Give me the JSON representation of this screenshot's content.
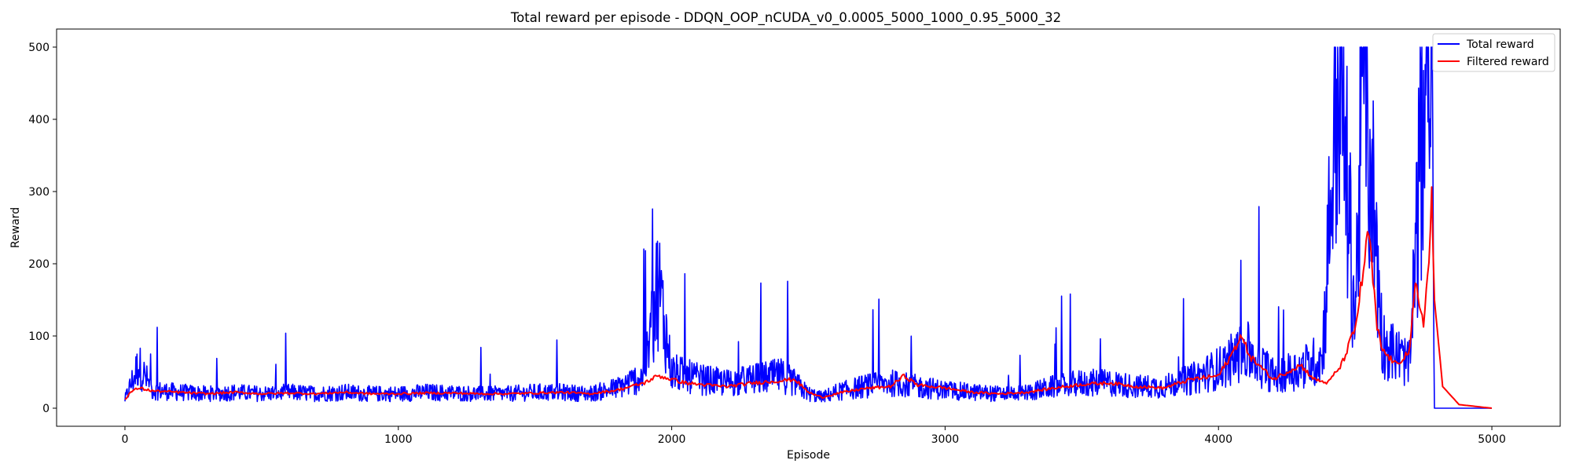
{
  "chart_data": {
    "type": "line",
    "title": "Total reward per episode - DDQN_OOP_nCUDA_v0_0.0005_5000_1000_0.95_5000_32",
    "xlabel": "Episode",
    "ylabel": "Reward",
    "xlim": [
      -250,
      5250
    ],
    "ylim": [
      -25,
      525
    ],
    "xticks": [
      0,
      1000,
      2000,
      3000,
      4000,
      5000
    ],
    "yticks": [
      0,
      100,
      200,
      300,
      400,
      500
    ],
    "grid": false,
    "legend_position": "top-right",
    "series": [
      {
        "name": "Total reward",
        "color": "#0000ff",
        "description_points": [
          [
            0,
            12
          ],
          [
            50,
            60
          ],
          [
            100,
            25
          ],
          [
            200,
            22
          ],
          [
            300,
            20
          ],
          [
            400,
            22
          ],
          [
            500,
            20
          ],
          [
            600,
            22
          ],
          [
            700,
            20
          ],
          [
            800,
            22
          ],
          [
            900,
            20
          ],
          [
            1000,
            20
          ],
          [
            1100,
            22
          ],
          [
            1200,
            21
          ],
          [
            1300,
            20
          ],
          [
            1400,
            20
          ],
          [
            1500,
            22
          ],
          [
            1600,
            22
          ],
          [
            1700,
            20
          ],
          [
            1800,
            28
          ],
          [
            1900,
            45
          ],
          [
            1950,
            175
          ],
          [
            2000,
            50
          ],
          [
            2100,
            40
          ],
          [
            2200,
            35
          ],
          [
            2300,
            40
          ],
          [
            2400,
            45
          ],
          [
            2450,
            35
          ],
          [
            2500,
            20
          ],
          [
            2550,
            15
          ],
          [
            2600,
            22
          ],
          [
            2700,
            30
          ],
          [
            2800,
            35
          ],
          [
            2900,
            30
          ],
          [
            3000,
            25
          ],
          [
            3100,
            22
          ],
          [
            3200,
            20
          ],
          [
            3300,
            22
          ],
          [
            3400,
            30
          ],
          [
            3500,
            35
          ],
          [
            3600,
            35
          ],
          [
            3700,
            30
          ],
          [
            3800,
            30
          ],
          [
            3900,
            40
          ],
          [
            4000,
            55
          ],
          [
            4100,
            80
          ],
          [
            4200,
            45
          ],
          [
            4300,
            55
          ],
          [
            4380,
            70
          ],
          [
            4440,
            500
          ],
          [
            4500,
            120
          ],
          [
            4530,
            500
          ],
          [
            4600,
            90
          ],
          [
            4700,
            60
          ],
          [
            4760,
            500
          ],
          [
            4780,
            500
          ],
          [
            4790,
            0
          ],
          [
            5000,
            0
          ]
        ]
      },
      {
        "name": "Filtered reward",
        "color": "#ff0000",
        "description_points": [
          [
            0,
            12
          ],
          [
            20,
            22
          ],
          [
            50,
            28
          ],
          [
            100,
            24
          ],
          [
            200,
            22
          ],
          [
            300,
            20
          ],
          [
            400,
            22
          ],
          [
            500,
            20
          ],
          [
            600,
            21
          ],
          [
            700,
            20
          ],
          [
            800,
            22
          ],
          [
            900,
            20
          ],
          [
            1000,
            20
          ],
          [
            1100,
            21
          ],
          [
            1200,
            21
          ],
          [
            1300,
            20
          ],
          [
            1400,
            20
          ],
          [
            1500,
            21
          ],
          [
            1600,
            22
          ],
          [
            1700,
            20
          ],
          [
            1800,
            25
          ],
          [
            1900,
            35
          ],
          [
            1950,
            45
          ],
          [
            2000,
            40
          ],
          [
            2050,
            35
          ],
          [
            2100,
            33
          ],
          [
            2200,
            30
          ],
          [
            2300,
            35
          ],
          [
            2400,
            38
          ],
          [
            2450,
            40
          ],
          [
            2500,
            22
          ],
          [
            2550,
            15
          ],
          [
            2600,
            20
          ],
          [
            2700,
            27
          ],
          [
            2800,
            30
          ],
          [
            2850,
            45
          ],
          [
            2900,
            32
          ],
          [
            3000,
            28
          ],
          [
            3100,
            22
          ],
          [
            3200,
            20
          ],
          [
            3300,
            22
          ],
          [
            3400,
            28
          ],
          [
            3500,
            33
          ],
          [
            3600,
            35
          ],
          [
            3700,
            30
          ],
          [
            3800,
            28
          ],
          [
            3900,
            40
          ],
          [
            4000,
            45
          ],
          [
            4050,
            75
          ],
          [
            4080,
            100
          ],
          [
            4120,
            70
          ],
          [
            4200,
            40
          ],
          [
            4250,
            50
          ],
          [
            4300,
            60
          ],
          [
            4350,
            40
          ],
          [
            4400,
            35
          ],
          [
            4450,
            60
          ],
          [
            4500,
            110
          ],
          [
            4550,
            245
          ],
          [
            4580,
            110
          ],
          [
            4600,
            80
          ],
          [
            4650,
            60
          ],
          [
            4700,
            80
          ],
          [
            4720,
            170
          ],
          [
            4750,
            120
          ],
          [
            4770,
            200
          ],
          [
            4780,
            300
          ],
          [
            4790,
            150
          ],
          [
            4820,
            30
          ],
          [
            4880,
            5
          ],
          [
            5000,
            0
          ]
        ]
      }
    ]
  }
}
